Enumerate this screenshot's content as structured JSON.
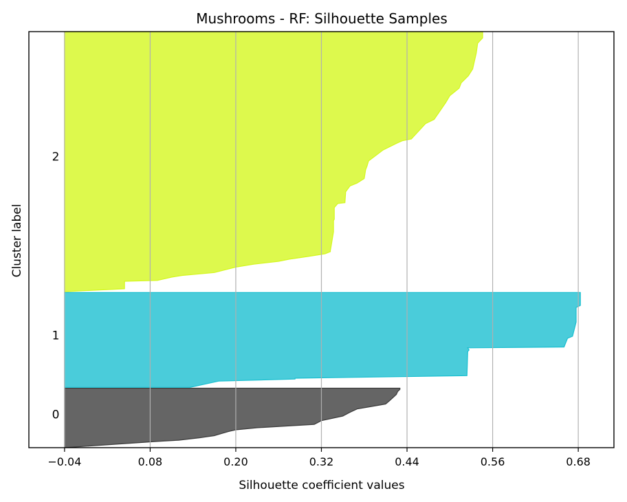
{
  "chart_data": {
    "type": "area",
    "title": "Mushrooms - RF: Silhouette Samples",
    "xlabel": "Silhouette coefficient values",
    "ylabel": "Cluster label",
    "xlim": [
      -0.09,
      0.73
    ],
    "ylim": [
      0,
      100
    ],
    "x_ticks": [
      -0.04,
      0.08,
      0.2,
      0.32,
      0.44,
      0.56,
      0.68
    ],
    "x_tick_labels": [
      "−0.04",
      "0.08",
      "0.20",
      "0.32",
      "0.44",
      "0.56",
      "0.68"
    ],
    "grid": "vertical",
    "clusters": [
      {
        "label": "0",
        "color": "#3a3a3a",
        "y_range": [
          0,
          14.5
        ],
        "label_y": 8,
        "profile": [
          [
            0,
            -0.04
          ],
          [
            1.5,
            0.09
          ],
          [
            1.8,
            0.12
          ],
          [
            2.4,
            0.15
          ],
          [
            2.9,
            0.17
          ],
          [
            3.4,
            0.18
          ],
          [
            3.9,
            0.19
          ],
          [
            4.3,
            0.2
          ],
          [
            4.8,
            0.23
          ],
          [
            5.6,
            0.31
          ],
          [
            6.5,
            0.32
          ],
          [
            7.6,
            0.35
          ],
          [
            8.5,
            0.36
          ],
          [
            9.3,
            0.37
          ],
          [
            9.9,
            0.39
          ],
          [
            10.5,
            0.41
          ],
          [
            11.2,
            0.415
          ],
          [
            12.0,
            0.42
          ],
          [
            12.8,
            0.425
          ],
          [
            13.5,
            0.427
          ],
          [
            14.0,
            0.43
          ],
          [
            14.3,
            0.43
          ]
        ]
      },
      {
        "label": "1",
        "color": "#17becf",
        "y_range": [
          14.5,
          37.5
        ],
        "label_y": 27,
        "profile": [
          [
            14.5,
            0.136
          ],
          [
            16.0,
            0.176
          ],
          [
            16.5,
            0.283
          ],
          [
            16.7,
            0.283
          ],
          [
            17.3,
            0.524
          ],
          [
            23.1,
            0.525
          ],
          [
            23.5,
            0.527
          ],
          [
            24.0,
            0.525
          ],
          [
            24.2,
            0.66
          ],
          [
            26.3,
            0.665
          ],
          [
            26.8,
            0.672
          ],
          [
            30.2,
            0.677
          ],
          [
            33.3,
            0.677
          ],
          [
            33.7,
            0.677
          ],
          [
            34.2,
            0.683
          ],
          [
            37.3,
            0.683
          ]
        ]
      },
      {
        "label": "2",
        "color": "#d4f71b",
        "y_range": [
          37.5,
          100
        ],
        "label_y": 70,
        "profile": [
          [
            37.5,
            -0.04
          ],
          [
            38.2,
            0.044
          ],
          [
            40.0,
            0.044
          ],
          [
            40.2,
            0.09
          ],
          [
            41.0,
            0.11
          ],
          [
            41.4,
            0.125
          ],
          [
            41.7,
            0.145
          ],
          [
            42.1,
            0.17
          ],
          [
            43.4,
            0.2
          ],
          [
            44.1,
            0.225
          ],
          [
            44.5,
            0.245
          ],
          [
            44.8,
            0.26
          ],
          [
            45.3,
            0.275
          ],
          [
            45.8,
            0.295
          ],
          [
            46.2,
            0.31
          ],
          [
            46.6,
            0.325
          ],
          [
            47.1,
            0.3325
          ],
          [
            47.4,
            0.3325
          ],
          [
            47.8,
            0.333
          ],
          [
            51.9,
            0.337
          ],
          [
            54.6,
            0.337
          ],
          [
            54.9,
            0.338
          ],
          [
            57.7,
            0.338
          ],
          [
            58.7,
            0.343
          ],
          [
            58.9,
            0.353
          ],
          [
            61.5,
            0.354
          ],
          [
            62.9,
            0.36
          ],
          [
            63.6,
            0.37
          ],
          [
            64.7,
            0.38
          ],
          [
            66.8,
            0.382
          ],
          [
            67.7,
            0.384
          ],
          [
            68.9,
            0.386
          ],
          [
            71.5,
            0.406
          ],
          [
            73.2,
            0.426
          ],
          [
            73.8,
            0.434
          ],
          [
            74.2,
            0.446
          ],
          [
            77.9,
            0.466
          ],
          [
            78.9,
            0.478
          ],
          [
            80.4,
            0.484
          ],
          [
            82.9,
            0.494
          ],
          [
            84.6,
            0.5
          ],
          [
            86.4,
            0.513
          ],
          [
            87.7,
            0.516
          ],
          [
            89.4,
            0.526
          ],
          [
            91.0,
            0.532
          ],
          [
            94.8,
            0.537
          ],
          [
            97.2,
            0.539
          ],
          [
            98.5,
            0.546
          ],
          [
            100,
            0.546
          ]
        ]
      }
    ]
  }
}
